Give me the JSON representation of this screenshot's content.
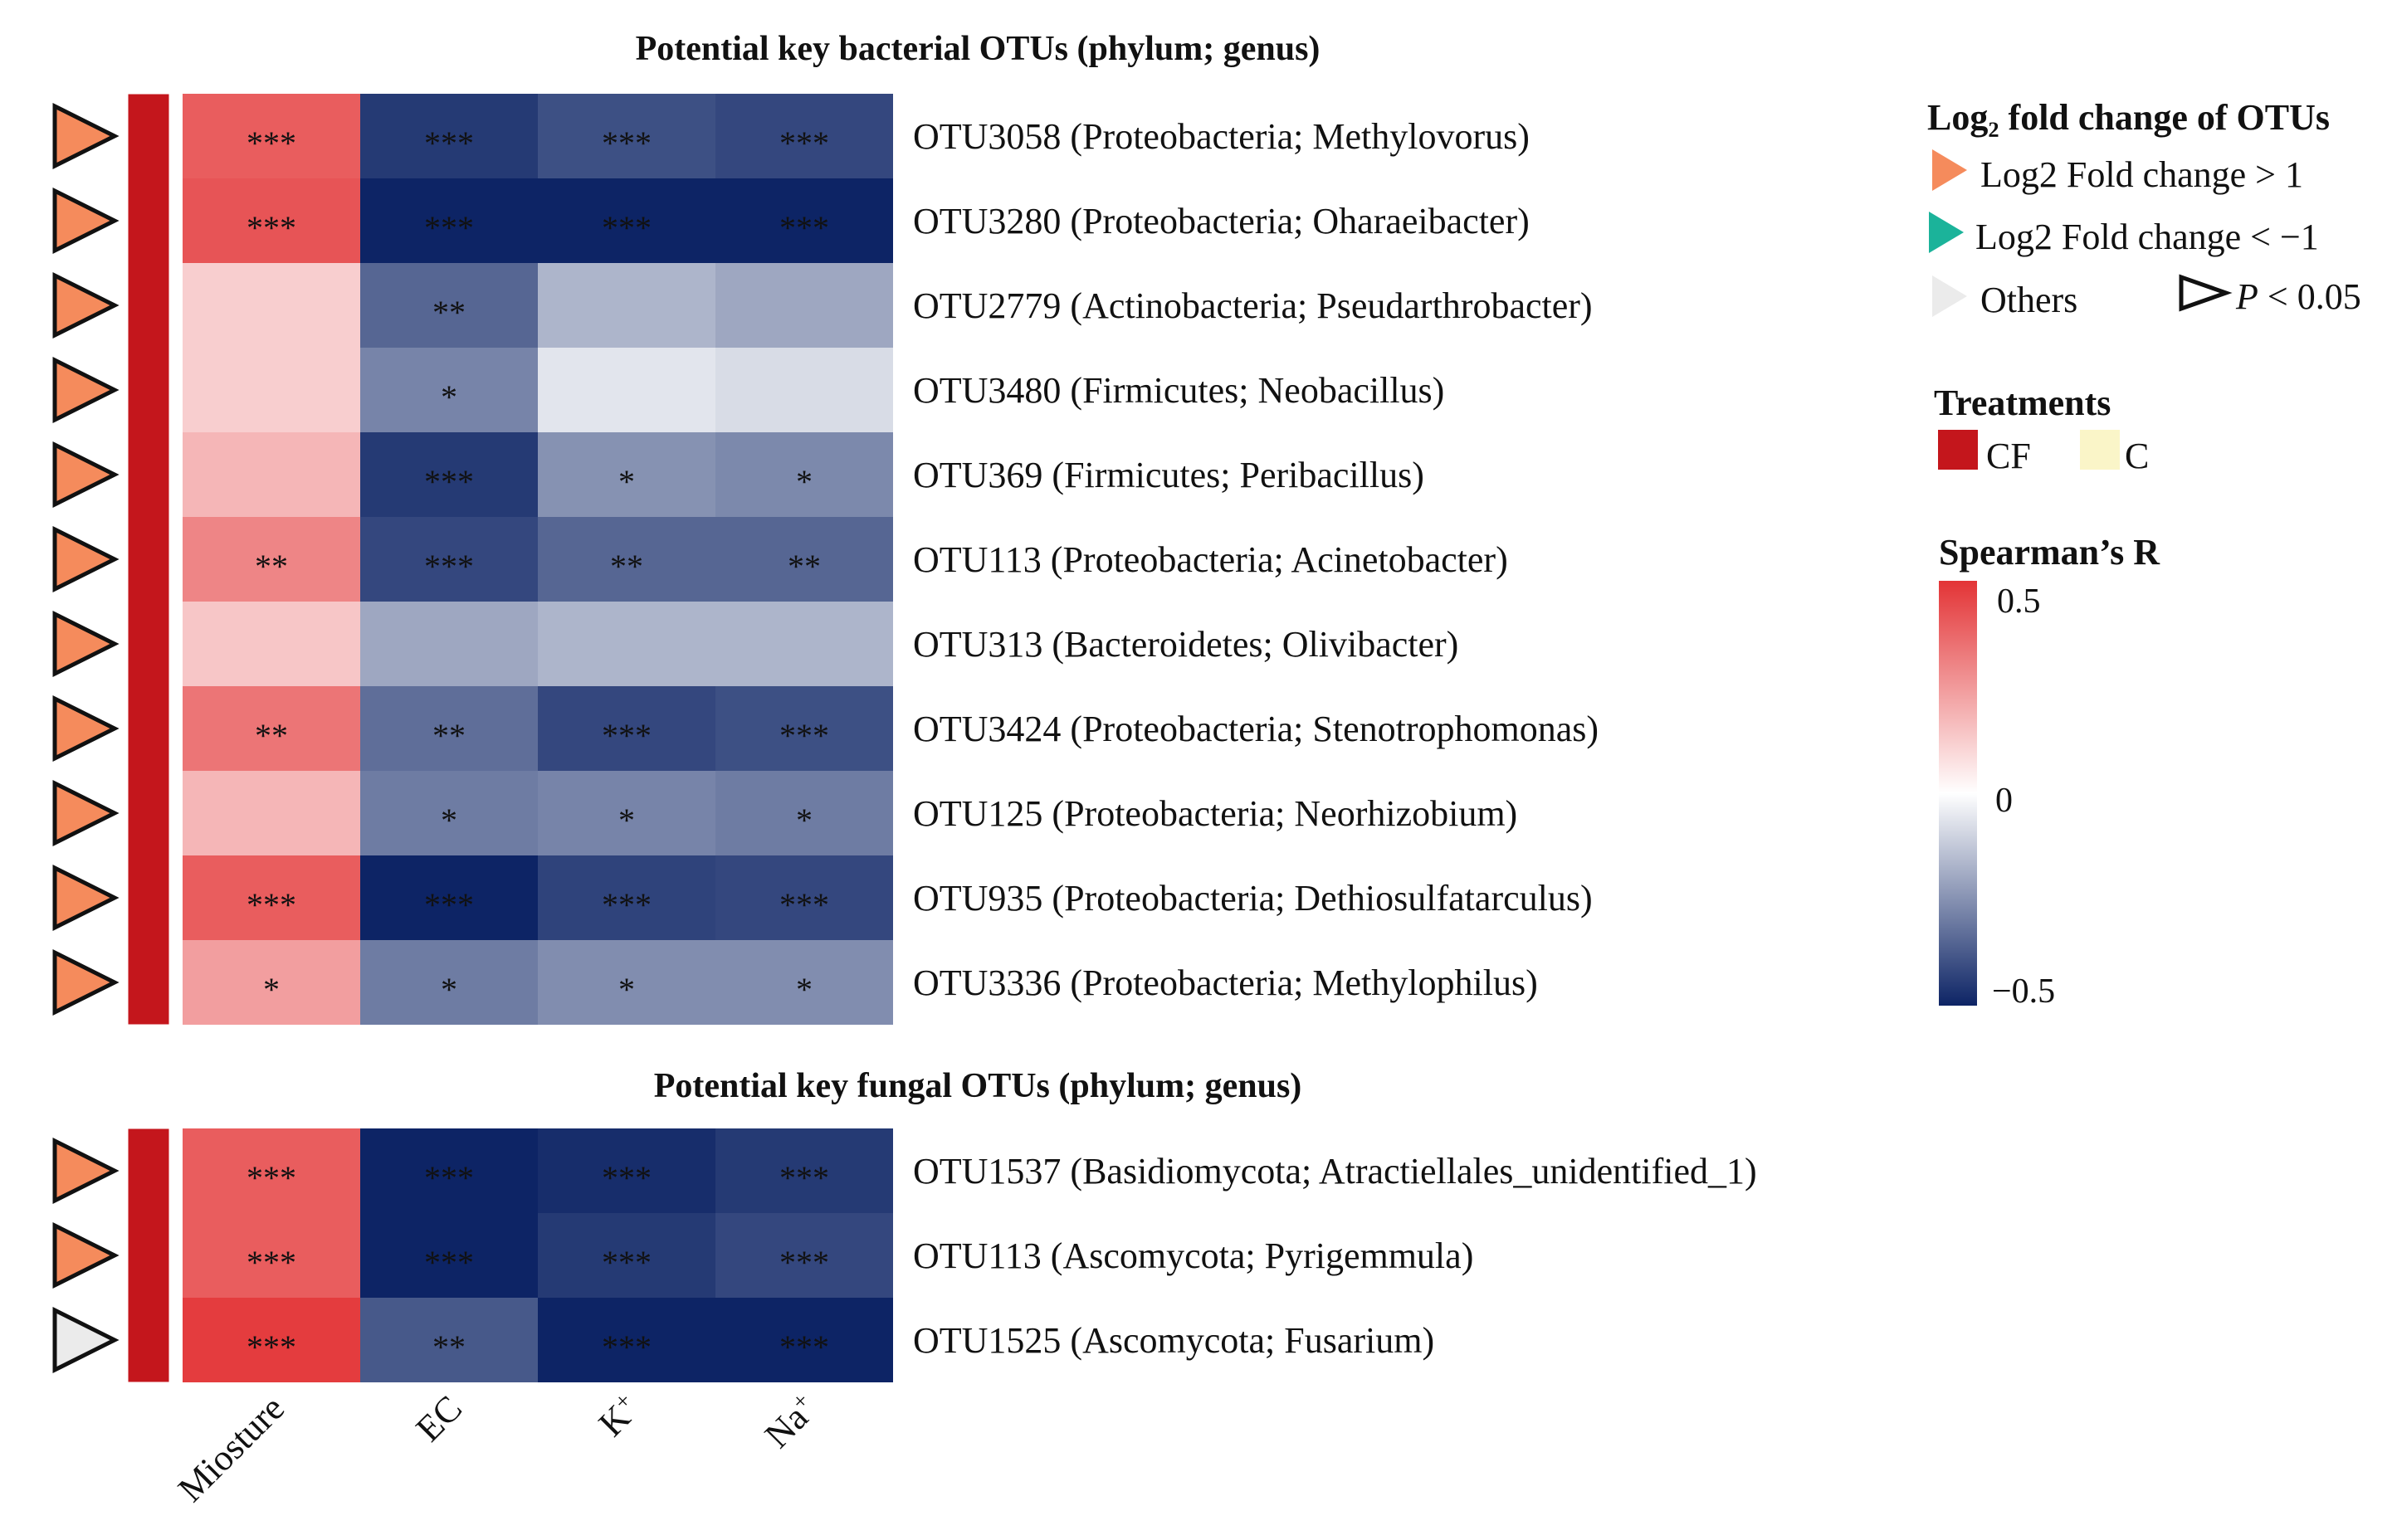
{
  "chart_data": {
    "type": "heatmap",
    "columns": [
      "Miosture",
      "EC",
      "K+",
      "Na+"
    ],
    "value_range": [
      -0.5,
      0.5
    ],
    "panels": [
      {
        "title": "Potential key bacterial OTUs (phylum; genus)",
        "rows": [
          {
            "label": "OTU3058 (Proteobacteria; Methylovorus)",
            "fold": "up",
            "significant": true,
            "treatment": "CF",
            "values": [
              0.4,
              -0.45,
              -0.4,
              -0.42
            ],
            "sig": [
              "***",
              "***",
              "***",
              "***"
            ]
          },
          {
            "label": "OTU3280 (Proteobacteria; Oharaeibacter)",
            "fold": "up",
            "significant": true,
            "treatment": "CF",
            "values": [
              0.42,
              -0.55,
              -0.58,
              -0.58
            ],
            "sig": [
              "***",
              "***",
              "***",
              "***"
            ]
          },
          {
            "label": "OTU2779 (Actinobacteria; Pseudarthrobacter)",
            "fold": "up",
            "significant": true,
            "treatment": "CF",
            "values": [
              0.12,
              -0.35,
              -0.17,
              -0.2
            ],
            "sig": [
              "",
              "**",
              "",
              ""
            ]
          },
          {
            "label": "OTU3480 (Firmicutes; Neobacillus)",
            "fold": "up",
            "significant": true,
            "treatment": "CF",
            "values": [
              0.12,
              -0.28,
              -0.06,
              -0.08
            ],
            "sig": [
              "",
              "*",
              "",
              ""
            ]
          },
          {
            "label": "OTU369 (Firmicutes; Peribacillus)",
            "fold": "up",
            "significant": true,
            "treatment": "CF",
            "values": [
              0.18,
              -0.45,
              -0.25,
              -0.27
            ],
            "sig": [
              "",
              "***",
              "*",
              "*"
            ]
          },
          {
            "label": "OTU113 (Proteobacteria; Acinetobacter)",
            "fold": "up",
            "significant": true,
            "treatment": "CF",
            "values": [
              0.3,
              -0.42,
              -0.35,
              -0.35
            ],
            "sig": [
              "**",
              "***",
              "**",
              "**"
            ]
          },
          {
            "label": "OTU313 (Bacteroidetes; Olivibacter)",
            "fold": "up",
            "significant": true,
            "treatment": "CF",
            "values": [
              0.14,
              -0.2,
              -0.17,
              -0.17
            ],
            "sig": [
              "",
              "",
              "",
              ""
            ]
          },
          {
            "label": "OTU3424 (Proteobacteria; Stenotrophomonas)",
            "fold": "up",
            "significant": true,
            "treatment": "CF",
            "values": [
              0.34,
              -0.33,
              -0.42,
              -0.4
            ],
            "sig": [
              "**",
              "**",
              "***",
              "***"
            ]
          },
          {
            "label": "OTU125 (Proteobacteria; Neorhizobium)",
            "fold": "up",
            "significant": true,
            "treatment": "CF",
            "values": [
              0.18,
              -0.3,
              -0.28,
              -0.3
            ],
            "sig": [
              "",
              "*",
              "*",
              "*"
            ]
          },
          {
            "label": "OTU935 (Proteobacteria; Dethiosulfatarculus)",
            "fold": "up",
            "significant": true,
            "treatment": "CF",
            "values": [
              0.4,
              -0.52,
              -0.43,
              -0.42
            ],
            "sig": [
              "***",
              "***",
              "***",
              "***"
            ]
          },
          {
            "label": "OTU3336 (Proteobacteria; Methylophilus)",
            "fold": "up",
            "significant": true,
            "treatment": "CF",
            "values": [
              0.24,
              -0.3,
              -0.26,
              -0.26
            ],
            "sig": [
              "*",
              "*",
              "*",
              "*"
            ]
          }
        ]
      },
      {
        "title": "Potential key fungal OTUs (phylum; genus)",
        "rows": [
          {
            "label": "OTU1537 (Basidiomycota; Atractiellales_unidentified_1)",
            "fold": "up",
            "significant": true,
            "treatment": "CF",
            "values": [
              0.4,
              -0.58,
              -0.48,
              -0.45
            ],
            "sig": [
              "***",
              "***",
              "***",
              "***"
            ]
          },
          {
            "label": "OTU113 (Ascomycota; Pyrigemmula)",
            "fold": "up",
            "significant": true,
            "treatment": "CF",
            "values": [
              0.4,
              -0.5,
              -0.45,
              -0.42
            ],
            "sig": [
              "***",
              "***",
              "***",
              "***"
            ]
          },
          {
            "label": "OTU1525 (Ascomycota; Fusarium)",
            "fold": "other",
            "significant": true,
            "treatment": "CF",
            "values": [
              0.48,
              -0.38,
              -0.55,
              -0.53
            ],
            "sig": [
              "***",
              "**",
              "***",
              "***"
            ]
          }
        ]
      }
    ]
  },
  "legend": {
    "fold_title": "Log₂ fold change of OTUs",
    "fold_items": [
      {
        "key": "up",
        "label": "Log2 Fold change > 1",
        "color": "#F58B5C"
      },
      {
        "key": "down",
        "label": "Log2 Fold change < −1",
        "color": "#1BB39A"
      },
      {
        "key": "other",
        "label": "Others",
        "color": "#EBEBEB"
      }
    ],
    "p_prefix": "P",
    "p_suffix": " < 0.05",
    "treatments_title": "Treatments",
    "treatments": [
      {
        "key": "CF",
        "label": "CF",
        "color": "#C4161C"
      },
      {
        "key": "C",
        "label": "C",
        "color": "#FAF5C8"
      }
    ],
    "colorbar_title": "Spearman’s R",
    "colorbar_ticks": [
      {
        "value": 0.5,
        "label": "0.5"
      },
      {
        "value": 0,
        "label": "0"
      },
      {
        "value": -0.5,
        "label": "−0.5"
      }
    ],
    "colorbar_colors": {
      "high": "#E33436",
      "mid": "#FFFFFF",
      "low": "#0D2465"
    }
  }
}
